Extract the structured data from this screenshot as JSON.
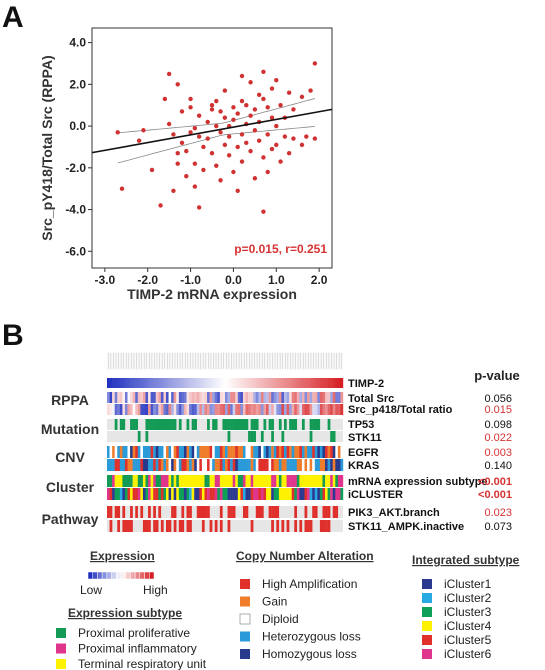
{
  "panels": {
    "a": "A",
    "b": "B"
  },
  "chart_data": [
    {
      "type": "scatter",
      "xlabel": "TIMP-2 mRNA expression",
      "ylabel": "Src_pY418/Total Src (RPPA)",
      "xlim": [
        -3.3,
        2.3
      ],
      "ylim": [
        -6.8,
        4.7
      ],
      "xticks": [
        "-3.0",
        "-2.0",
        "-1.0",
        "0.0",
        "1.0",
        "2.0"
      ],
      "yticks": [
        "4.0",
        "2.0",
        "0.0",
        "-2.0",
        "-4.0",
        "-6.0"
      ],
      "annotation": "p=0.015, r=0.251",
      "regression": {
        "slope": 0.37,
        "intercept": -0.05
      },
      "points": [
        [
          -2.7,
          -0.3
        ],
        [
          -2.6,
          -3.0
        ],
        [
          -2.2,
          -0.7
        ],
        [
          -2.1,
          -0.2
        ],
        [
          -1.9,
          -2.1
        ],
        [
          -1.7,
          -3.8
        ],
        [
          -1.6,
          1.3
        ],
        [
          -1.5,
          2.5
        ],
        [
          -1.5,
          0.1
        ],
        [
          -1.4,
          -0.4
        ],
        [
          -1.4,
          -3.1
        ],
        [
          -1.3,
          2.0
        ],
        [
          -1.3,
          -1.3
        ],
        [
          -1.2,
          -0.8
        ],
        [
          -1.2,
          0.7
        ],
        [
          -1.1,
          -1.2
        ],
        [
          -1.1,
          -2.4
        ],
        [
          -1.0,
          1.3
        ],
        [
          -1.0,
          -0.3
        ],
        [
          -1.0,
          0.9
        ],
        [
          -0.9,
          -2.9
        ],
        [
          -0.9,
          -0.1
        ],
        [
          -0.9,
          -1.8
        ],
        [
          -0.8,
          0.5
        ],
        [
          -0.8,
          -0.5
        ],
        [
          -0.7,
          -1.0
        ],
        [
          -0.7,
          -2.1
        ],
        [
          -0.6,
          0.2
        ],
        [
          -0.6,
          -0.6
        ],
        [
          -0.5,
          0.8
        ],
        [
          -0.5,
          1.0
        ],
        [
          -0.5,
          -1.3
        ],
        [
          -0.4,
          1.2
        ],
        [
          -0.4,
          0.0
        ],
        [
          -0.4,
          -1.9
        ],
        [
          -0.3,
          0.7
        ],
        [
          -0.3,
          -0.3
        ],
        [
          -0.3,
          -2.6
        ],
        [
          -0.2,
          0.4
        ],
        [
          -0.2,
          -0.9
        ],
        [
          -0.2,
          1.7
        ],
        [
          -0.1,
          0.0
        ],
        [
          -0.1,
          -1.4
        ],
        [
          -0.1,
          -0.5
        ],
        [
          0.0,
          0.9
        ],
        [
          0.0,
          0.3
        ],
        [
          0.0,
          -2.2
        ],
        [
          0.1,
          -1.0
        ],
        [
          0.1,
          0.6
        ],
        [
          0.1,
          -3.1
        ],
        [
          0.2,
          1.2
        ],
        [
          0.2,
          -0.4
        ],
        [
          0.2,
          -1.7
        ],
        [
          0.3,
          0.1
        ],
        [
          0.3,
          1.0
        ],
        [
          0.3,
          -0.8
        ],
        [
          0.4,
          0.5
        ],
        [
          0.4,
          -1.2
        ],
        [
          0.4,
          2.1
        ],
        [
          0.5,
          -0.2
        ],
        [
          0.5,
          0.8
        ],
        [
          0.5,
          -2.5
        ],
        [
          0.6,
          1.5
        ],
        [
          0.6,
          -0.7
        ],
        [
          0.6,
          0.2
        ],
        [
          0.7,
          1.3
        ],
        [
          0.7,
          -1.5
        ],
        [
          0.7,
          -4.1
        ],
        [
          0.7,
          2.6
        ],
        [
          0.8,
          0.9
        ],
        [
          0.8,
          -0.4
        ],
        [
          0.8,
          -2.2
        ],
        [
          0.9,
          0.4
        ],
        [
          0.9,
          1.8
        ],
        [
          0.9,
          -1.1
        ],
        [
          1.0,
          0.0
        ],
        [
          1.0,
          2.2
        ],
        [
          1.0,
          -0.9
        ],
        [
          1.1,
          1.0
        ],
        [
          1.1,
          -1.7
        ],
        [
          1.2,
          0.4
        ],
        [
          1.2,
          -0.5
        ],
        [
          1.3,
          1.6
        ],
        [
          1.3,
          -1.3
        ],
        [
          1.4,
          0.8
        ],
        [
          1.4,
          -0.6
        ],
        [
          1.6,
          1.4
        ],
        [
          1.6,
          -0.9
        ],
        [
          1.7,
          -0.5
        ],
        [
          1.8,
          1.7
        ],
        [
          1.9,
          3.0
        ],
        [
          1.9,
          -0.6
        ],
        [
          -1.3,
          -1.8
        ],
        [
          0.2,
          2.4
        ],
        [
          -0.8,
          -3.9
        ]
      ]
    },
    {
      "type": "heatmap",
      "categories": [
        "RPPA",
        "Mutation",
        "CNV",
        "Cluster",
        "Pathway"
      ],
      "rows": [
        {
          "label": "TIMP-2",
          "p": ""
        },
        {
          "label": "Total Src",
          "p": "0.056"
        },
        {
          "label": "Src_p418/Total ratio",
          "p": "0.015"
        },
        {
          "label": "TP53",
          "p": "0.098"
        },
        {
          "label": "STK11",
          "p": "0.022"
        },
        {
          "label": "EGFR",
          "p": "0.003"
        },
        {
          "label": "KRAS",
          "p": "0.140"
        },
        {
          "label": "mRNA expression subtype",
          "p": "<0.001"
        },
        {
          "label": "iCLUSTER",
          "p": "<0.001"
        },
        {
          "label": "PIK3_AKT.branch",
          "p": "0.023"
        },
        {
          "label": "STK11_AMPK.inactive",
          "p": "0.073"
        }
      ],
      "pvalue_header": "p-value",
      "n_samples": 92
    }
  ],
  "legends": {
    "expression": {
      "title": "Expression",
      "low": "Low",
      "high": "High"
    },
    "cna": {
      "title": "Copy Number Alteration",
      "items": [
        {
          "label": "High Amplification",
          "color": "#e0302c"
        },
        {
          "label": "Gain",
          "color": "#ef7d2c"
        },
        {
          "label": "Diploid",
          "color": "#ffffff"
        },
        {
          "label": "Heterozygous loss",
          "color": "#2a9ad8"
        },
        {
          "label": "Homozygous loss",
          "color": "#283a8c"
        }
      ]
    },
    "integrated": {
      "title": "Integrated subtype",
      "items": [
        {
          "label": "iCluster1",
          "color": "#2b3990"
        },
        {
          "label": "iCluster2",
          "color": "#27aae1"
        },
        {
          "label": "iCluster3",
          "color": "#0e9f58"
        },
        {
          "label": "iCluster4",
          "color": "#fff200"
        },
        {
          "label": "iCluster5",
          "color": "#e0302c"
        },
        {
          "label": "iCluster6",
          "color": "#e0358d"
        }
      ]
    },
    "subtype": {
      "title": "Expression subtype",
      "items": [
        {
          "label": "Proximal proliferative",
          "color": "#139a55"
        },
        {
          "label": "Proximal inflammatory",
          "color": "#e0358d"
        },
        {
          "label": "Terminal respiratory unit",
          "color": "#fff200"
        }
      ]
    }
  },
  "colors": {
    "point": "#d03131",
    "red": "#d63333",
    "blue": "#1f2fbf",
    "mutation": "#139a55",
    "pathway": "#e0302c",
    "background_track": "#e6e6e6"
  }
}
